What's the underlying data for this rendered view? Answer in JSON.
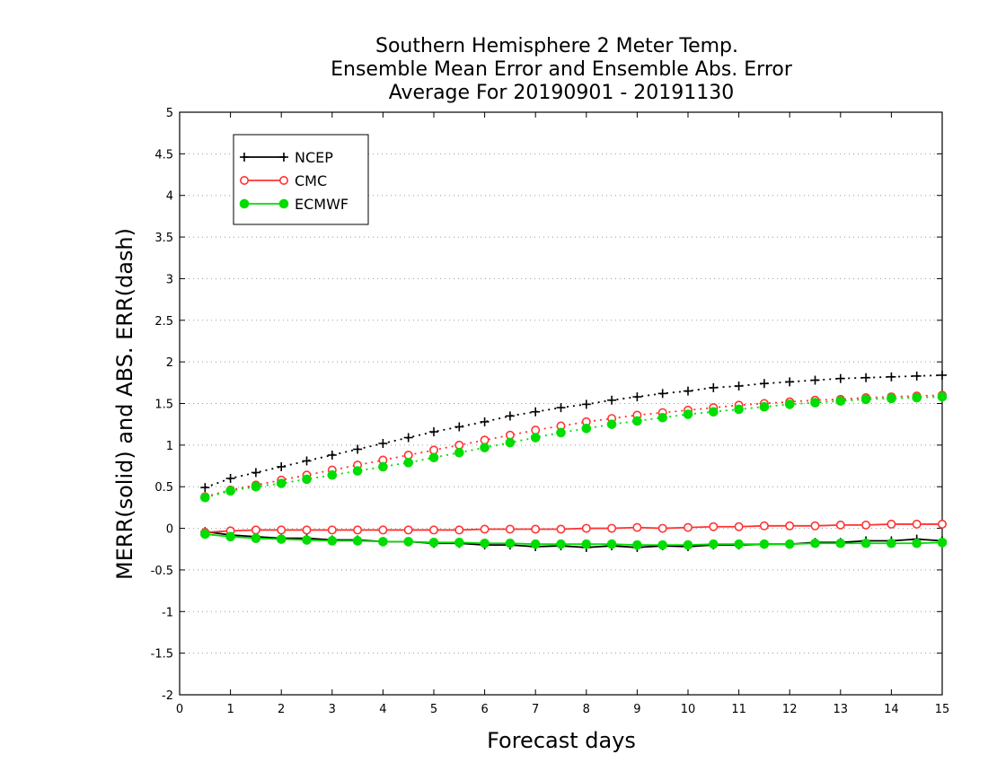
{
  "chart_data": {
    "type": "line",
    "title": [
      "Southern Hemisphere 2 Meter Temp.",
      "Ensemble Mean Error and Ensemble Abs. Error",
      "Average For 20190901 - 20191130"
    ],
    "xlabel": "Forecast days",
    "ylabel": "MERR(solid) and ABS. ERR(dash)",
    "xlim": [
      0,
      15
    ],
    "ylim": [
      -2,
      5
    ],
    "xticks": [
      "0",
      "1",
      "2",
      "3",
      "4",
      "5",
      "6",
      "7",
      "8",
      "9",
      "10",
      "11",
      "12",
      "13",
      "14",
      "15"
    ],
    "yticks": [
      "-2",
      "-1.5",
      "-1",
      "-0.5",
      "0",
      "0.5",
      "1",
      "1.5",
      "2",
      "2.5",
      "3",
      "3.5",
      "4",
      "4.5",
      "5"
    ],
    "grid": true,
    "legend_position": "top-left",
    "x": [
      0.5,
      1,
      1.5,
      2,
      2.5,
      3,
      3.5,
      4,
      4.5,
      5,
      5.5,
      6,
      6.5,
      7,
      7.5,
      8,
      8.5,
      9,
      9.5,
      10,
      10.5,
      11,
      11.5,
      12,
      12.5,
      13,
      13.5,
      14,
      14.5,
      15
    ],
    "series": [
      {
        "name": "NCEP",
        "color": "#000000",
        "marker": "plus",
        "merr": [
          -0.04,
          -0.08,
          -0.1,
          -0.12,
          -0.12,
          -0.14,
          -0.14,
          -0.16,
          -0.16,
          -0.18,
          -0.18,
          -0.2,
          -0.2,
          -0.22,
          -0.21,
          -0.23,
          -0.21,
          -0.23,
          -0.21,
          -0.22,
          -0.2,
          -0.2,
          -0.19,
          -0.19,
          -0.17,
          -0.17,
          -0.15,
          -0.15,
          -0.13,
          -0.15
        ],
        "abs_err": [
          0.49,
          0.6,
          0.67,
          0.74,
          0.81,
          0.88,
          0.95,
          1.02,
          1.09,
          1.16,
          1.22,
          1.28,
          1.35,
          1.4,
          1.45,
          1.49,
          1.54,
          1.58,
          1.62,
          1.65,
          1.69,
          1.71,
          1.74,
          1.76,
          1.78,
          1.8,
          1.81,
          1.82,
          1.83,
          1.84
        ]
      },
      {
        "name": "CMC",
        "color": "#ff3333",
        "marker": "open-circle",
        "merr": [
          -0.05,
          -0.03,
          -0.02,
          -0.02,
          -0.02,
          -0.02,
          -0.02,
          -0.02,
          -0.02,
          -0.02,
          -0.02,
          -0.01,
          -0.01,
          -0.01,
          -0.01,
          0.0,
          0.0,
          0.01,
          0.0,
          0.01,
          0.02,
          0.02,
          0.03,
          0.03,
          0.03,
          0.04,
          0.04,
          0.05,
          0.05,
          0.05
        ],
        "abs_err": [
          0.38,
          0.46,
          0.52,
          0.58,
          0.64,
          0.7,
          0.76,
          0.82,
          0.88,
          0.94,
          1.0,
          1.06,
          1.12,
          1.18,
          1.23,
          1.28,
          1.32,
          1.36,
          1.39,
          1.42,
          1.45,
          1.48,
          1.5,
          1.52,
          1.54,
          1.55,
          1.57,
          1.58,
          1.59,
          1.6
        ]
      },
      {
        "name": "ECMWF",
        "color": "#00dd00",
        "marker": "filled-circle",
        "merr": [
          -0.07,
          -0.1,
          -0.12,
          -0.13,
          -0.14,
          -0.15,
          -0.15,
          -0.16,
          -0.16,
          -0.17,
          -0.17,
          -0.18,
          -0.18,
          -0.19,
          -0.19,
          -0.19,
          -0.19,
          -0.2,
          -0.2,
          -0.2,
          -0.19,
          -0.19,
          -0.19,
          -0.19,
          -0.18,
          -0.18,
          -0.18,
          -0.18,
          -0.18,
          -0.17
        ],
        "abs_err": [
          0.37,
          0.45,
          0.5,
          0.54,
          0.59,
          0.64,
          0.69,
          0.74,
          0.79,
          0.85,
          0.91,
          0.97,
          1.03,
          1.09,
          1.15,
          1.2,
          1.25,
          1.29,
          1.33,
          1.37,
          1.4,
          1.43,
          1.46,
          1.49,
          1.51,
          1.53,
          1.55,
          1.56,
          1.57,
          1.58
        ]
      }
    ]
  }
}
